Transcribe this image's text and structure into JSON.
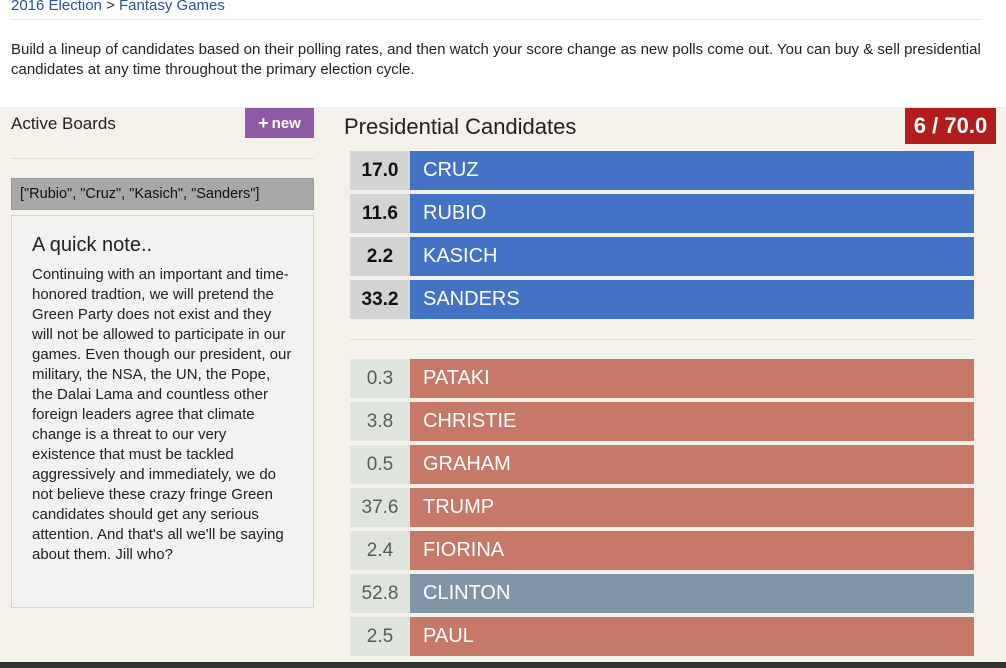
{
  "breadcrumb": {
    "root": "2016 Election",
    "separator": ">",
    "current": "Fantasy Games"
  },
  "intro": "Build a lineup of candidates based on their polling rates, and then watch your score change as new polls come out. You can buy & sell presidential candidates at any time throughout the primary election cycle.",
  "sidebar": {
    "title": "Active Boards",
    "new_button": {
      "icon": "+",
      "label": "new"
    },
    "boards": [
      "[\"Rubio\", \"Cruz\", \"Kasich\", \"Sanders\"]"
    ],
    "note": {
      "title": "A quick note..",
      "body": "Continuing with an important and time-honored tradtion, we will pretend the Green Party does not exist and they will not be allowed to participate in our games. Even though our president, our military, the NSA, the UN, the Pope, the Dalai Lama and countless other foreign leaders agree that climate change is a threat to our very existence that must be tackled aggressively and immediately, we do not believe these crazy fringe Green candidates should get any serious attention. And that's all we'll be saying about them. Jill who?"
    }
  },
  "main": {
    "title": "Presidential Candidates",
    "score": "6 / 70.0",
    "selected": [
      {
        "value": "17.0",
        "name": "CRUZ"
      },
      {
        "value": "11.6",
        "name": "RUBIO"
      },
      {
        "value": "2.2",
        "name": "KASICH"
      },
      {
        "value": "33.2",
        "name": "SANDERS"
      }
    ],
    "available": [
      {
        "value": "0.3",
        "name": "PATAKI",
        "party": "republican"
      },
      {
        "value": "3.8",
        "name": "CHRISTIE",
        "party": "republican"
      },
      {
        "value": "0.5",
        "name": "GRAHAM",
        "party": "republican"
      },
      {
        "value": "37.6",
        "name": "TRUMP",
        "party": "republican"
      },
      {
        "value": "2.4",
        "name": "FIORINA",
        "party": "republican"
      },
      {
        "value": "52.8",
        "name": "CLINTON",
        "party": "democrat"
      },
      {
        "value": "2.5",
        "name": "PAUL",
        "party": "republican"
      }
    ]
  },
  "colors": {
    "selected": "#4472c4",
    "republican": "#c67869",
    "democrat": "#8096a8",
    "new_button": "#8f5aa8",
    "score_badge": "#b31c1c"
  }
}
